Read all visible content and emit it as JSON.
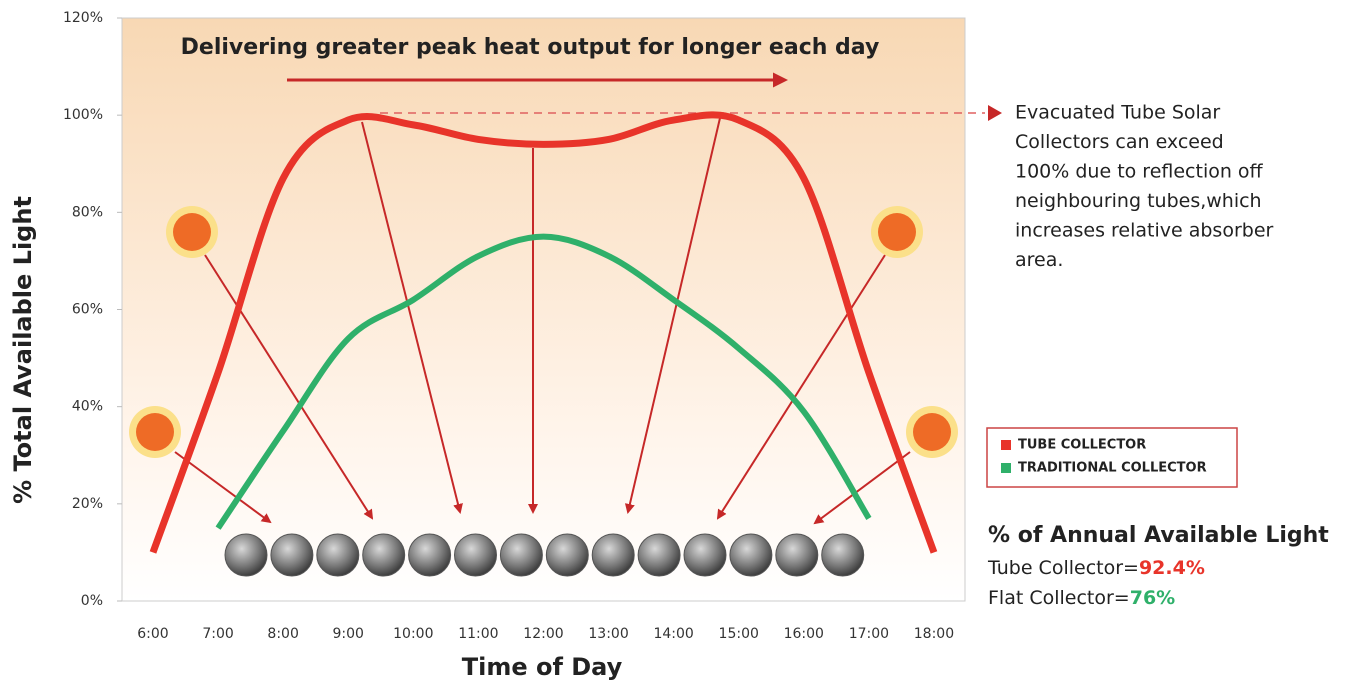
{
  "chart_data": {
    "type": "line",
    "title": "Delivering greater peak heat output for longer each day",
    "x_label": "Time of Day",
    "y_label": "% Total Available Light",
    "categories": [
      "6:00",
      "7:00",
      "8:00",
      "9:00",
      "10:00",
      "11:00",
      "12:00",
      "13:00",
      "14:00",
      "15:00",
      "16:00",
      "17:00",
      "18:00"
    ],
    "series": [
      {
        "name": "TUBE COLLECTOR",
        "color": "#e8342a",
        "values": [
          10,
          47,
          87,
          99,
          98,
          95,
          94,
          95,
          99,
          99,
          87,
          47,
          10
        ]
      },
      {
        "name": "TRADITIONAL COLLECTOR",
        "color": "#2fb06a",
        "values": [
          null,
          15,
          35,
          54,
          62,
          71,
          75,
          71,
          62,
          52,
          39,
          17,
          null
        ]
      }
    ],
    "ylim": [
      0,
      120
    ],
    "yticks": [
      {
        "value": 0,
        "label": "0%"
      },
      {
        "value": 20,
        "label": "20%"
      },
      {
        "value": 40,
        "label": "40%"
      },
      {
        "value": 60,
        "label": "60%"
      },
      {
        "value": 80,
        "label": "80%"
      },
      {
        "value": 100,
        "label": "100%"
      },
      {
        "value": 120,
        "label": "120%"
      }
    ],
    "annotation": [
      "Evacuated Tube Solar",
      "Collectors can exceed",
      "100% due to reflection off",
      "neighbouring tubes,which",
      "increases relative absorber",
      "area."
    ],
    "summary": {
      "title": "% of Annual Available Light",
      "items": [
        {
          "label": "Tube Collector=",
          "value": "92.4%"
        },
        {
          "label": "Flat Collector=",
          "value": "76%"
        }
      ]
    }
  }
}
